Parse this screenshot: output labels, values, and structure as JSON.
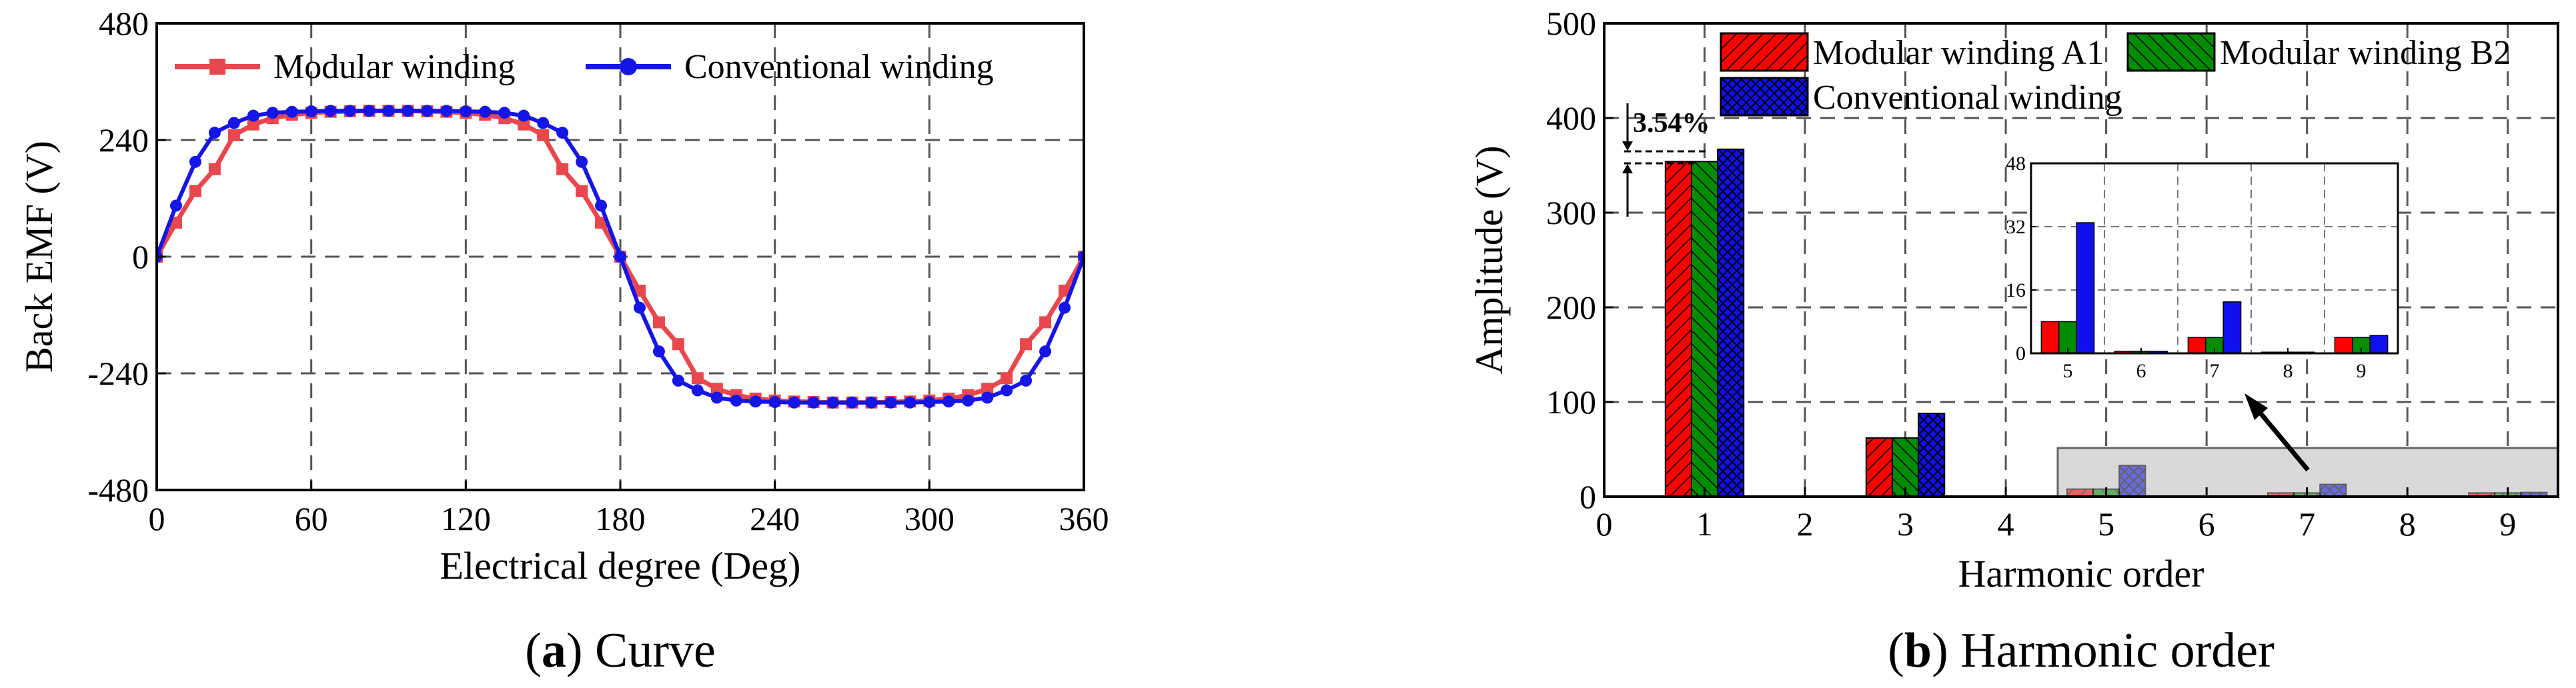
{
  "chart_data": [
    {
      "type": "line",
      "caption_label": "a",
      "caption_text": "Curve",
      "xlabel": "Electrical degree (Deg)",
      "ylabel": "Back EMF (V)",
      "xlim": [
        0,
        360
      ],
      "ylim": [
        -480,
        480
      ],
      "xticks": [
        "0",
        "60",
        "120",
        "180",
        "240",
        "300",
        "360"
      ],
      "yticks": [
        "-480",
        "-240",
        "0",
        "240",
        "480"
      ],
      "grid": true,
      "legend_position": "top",
      "series": [
        {
          "name": "Modular winding",
          "color": "#e8474e",
          "marker": "square",
          "x": [
            0,
            7.5,
            15,
            22.5,
            30,
            37.5,
            45,
            52.5,
            60,
            67.5,
            75,
            82.5,
            90,
            97.5,
            105,
            112.5,
            120,
            127.5,
            135,
            142.5,
            150,
            157.5,
            165,
            172.5,
            180,
            187.5,
            195,
            202.5,
            210,
            217.5,
            225,
            232.5,
            240,
            247.5,
            255,
            262.5,
            270,
            277.5,
            285,
            292.5,
            300,
            307.5,
            315,
            322.5,
            330,
            337.5,
            345,
            352.5,
            360
          ],
          "values": [
            0,
            70,
            135,
            180,
            250,
            272,
            285,
            292,
            296,
            298,
            299,
            300,
            300,
            300,
            299,
            298,
            296,
            292,
            285,
            272,
            250,
            180,
            135,
            70,
            0,
            -70,
            -135,
            -180,
            -250,
            -272,
            -285,
            -292,
            -296,
            -298,
            -299,
            -300,
            -300,
            -300,
            -299,
            -298,
            -296,
            -292,
            -285,
            -272,
            -250,
            -180,
            -135,
            -70,
            0
          ]
        },
        {
          "name": "Conventional winding",
          "color": "#1515e6",
          "marker": "circle",
          "x": [
            0,
            7.5,
            15,
            22.5,
            30,
            37.5,
            45,
            52.5,
            60,
            67.5,
            75,
            82.5,
            90,
            97.5,
            105,
            112.5,
            120,
            127.5,
            135,
            142.5,
            150,
            157.5,
            165,
            172.5,
            180,
            187.5,
            195,
            202.5,
            210,
            217.5,
            225,
            232.5,
            240,
            247.5,
            255,
            262.5,
            270,
            277.5,
            285,
            292.5,
            300,
            307.5,
            315,
            322.5,
            330,
            337.5,
            345,
            352.5,
            360
          ],
          "values": [
            0,
            105,
            195,
            255,
            275,
            290,
            296,
            298,
            299,
            300,
            300,
            300,
            300,
            300,
            300,
            300,
            299,
            298,
            296,
            290,
            275,
            255,
            195,
            105,
            0,
            -105,
            -195,
            -255,
            -275,
            -290,
            -296,
            -298,
            -299,
            -300,
            -300,
            -300,
            -300,
            -300,
            -300,
            -300,
            -299,
            -298,
            -296,
            -290,
            -275,
            -255,
            -195,
            -105,
            0
          ]
        }
      ]
    },
    {
      "type": "bar",
      "caption_label": "b",
      "caption_text": "Harmonic order",
      "xlabel": "Harmonic order",
      "ylabel": "Amplitude (V)",
      "xlim": [
        0,
        9.5
      ],
      "ylim": [
        0,
        500
      ],
      "xticks": [
        "0",
        "1",
        "2",
        "3",
        "4",
        "5",
        "6",
        "7",
        "8",
        "9"
      ],
      "yticks": [
        "0",
        "100",
        "200",
        "300",
        "400",
        "500"
      ],
      "grid": true,
      "legend_position": "top-left",
      "categories": [
        "1",
        "2",
        "3",
        "4",
        "5",
        "6",
        "7",
        "8",
        "9"
      ],
      "series": [
        {
          "name": "Modular winding A1",
          "color": "#ff0000",
          "values": [
            354,
            1,
            62,
            0.5,
            8,
            0.5,
            4,
            0.3,
            4
          ]
        },
        {
          "name": "Modular winding B2",
          "color": "#008c00",
          "values": [
            354,
            1,
            62,
            0.5,
            8,
            0.5,
            4,
            0.3,
            4
          ]
        },
        {
          "name": "Conventional winding",
          "color": "#1010ee",
          "values": [
            367,
            1,
            88,
            0.5,
            33,
            0.5,
            13,
            0.3,
            4.5
          ]
        }
      ],
      "annotation": "3.54%",
      "inset": {
        "categories": [
          "5",
          "6",
          "7",
          "8",
          "9"
        ],
        "ylim": [
          0,
          48
        ],
        "yticks": [
          "0",
          "16",
          "32",
          "48"
        ],
        "series_values": [
          [
            8,
            0.5,
            4,
            0.3,
            4
          ],
          [
            8,
            0.5,
            4,
            0.3,
            4
          ],
          [
            33,
            0.5,
            13,
            0.3,
            4.5
          ]
        ]
      }
    }
  ]
}
